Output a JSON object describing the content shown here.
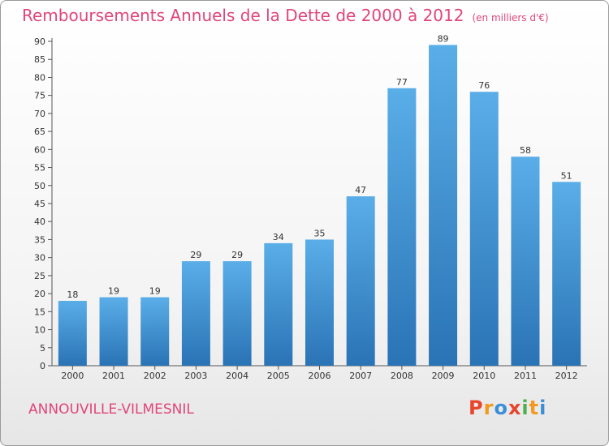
{
  "header": {
    "title": "Remboursements Annuels de la Dette de 2000 à 2012",
    "unit": "(en milliers d'€)"
  },
  "footer": {
    "commune": "ANNOUVILLE-VILMESNIL",
    "brand_letters": [
      "P",
      "r",
      "o",
      "x",
      "i",
      "t",
      "i"
    ],
    "brand_colors": [
      "#e8452c",
      "#f29a1f",
      "#3b8fd9",
      "#e8452c",
      "#4caf50",
      "#f29a1f",
      "#3b8fd9"
    ]
  },
  "colors": {
    "bar_top": "#5aaee8",
    "bar_bottom": "#2a73b5",
    "title": "#e0457b"
  },
  "chart_data": {
    "type": "bar",
    "title": "Remboursements Annuels de la Dette de 2000 à 2012",
    "categories": [
      "2000",
      "2001",
      "2002",
      "2003",
      "2004",
      "2005",
      "2006",
      "2007",
      "2008",
      "2009",
      "2010",
      "2011",
      "2012"
    ],
    "values": [
      18,
      19,
      19,
      29,
      29,
      34,
      35,
      47,
      77,
      89,
      76,
      58,
      51
    ],
    "ylim": [
      0,
      90
    ],
    "yticks": [
      0,
      5,
      10,
      15,
      20,
      25,
      30,
      35,
      40,
      45,
      50,
      55,
      60,
      65,
      70,
      75,
      80,
      85,
      90
    ],
    "grid": false,
    "data_labels": true
  }
}
